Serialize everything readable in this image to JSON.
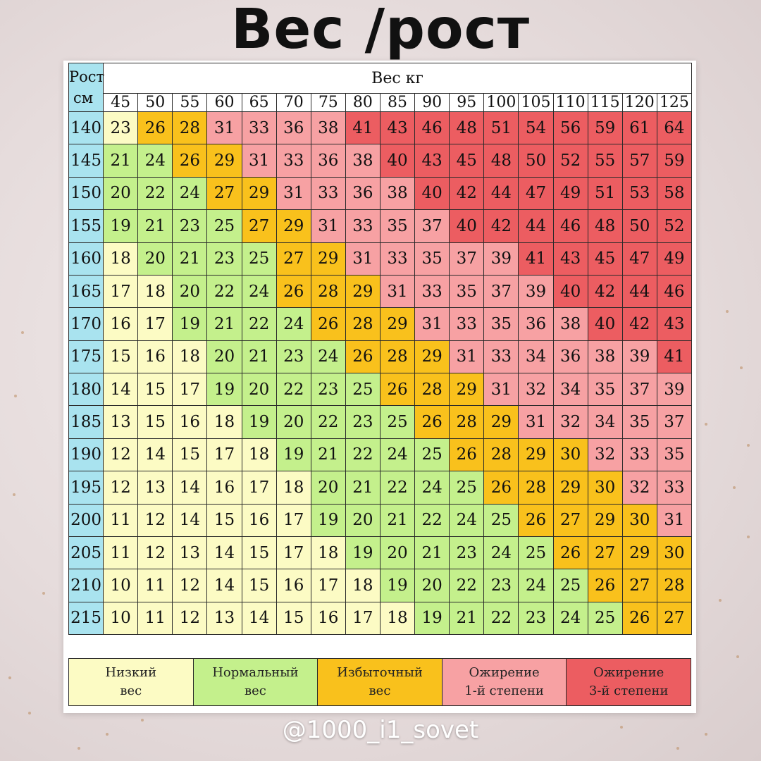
{
  "title": "Вес /рост",
  "watermark": "@1000_i1_sovet",
  "chart_data": {
    "type": "table",
    "corner_label_line1": "Рост",
    "corner_label_line2": "см",
    "weight_header": "Вес кг",
    "weights": [
      "45",
      "50",
      "55",
      "60",
      "65",
      "70",
      "75",
      "80",
      "85",
      "90",
      "95",
      "100",
      "105",
      "110",
      "115",
      "120",
      "125"
    ],
    "heights": [
      "140",
      "145",
      "150",
      "155",
      "160",
      "165",
      "170",
      "175",
      "180",
      "185",
      "190",
      "195",
      "200",
      "205",
      "210",
      "215"
    ],
    "values": [
      [
        23,
        26,
        28,
        31,
        33,
        36,
        38,
        41,
        43,
        46,
        48,
        51,
        54,
        56,
        59,
        61,
        64
      ],
      [
        21,
        24,
        26,
        29,
        31,
        33,
        36,
        38,
        40,
        43,
        45,
        48,
        50,
        52,
        55,
        57,
        59
      ],
      [
        20,
        22,
        24,
        27,
        29,
        31,
        33,
        36,
        38,
        40,
        42,
        44,
        47,
        49,
        51,
        53,
        58
      ],
      [
        19,
        21,
        23,
        25,
        27,
        29,
        31,
        33,
        35,
        37,
        40,
        42,
        44,
        46,
        48,
        50,
        52
      ],
      [
        18,
        20,
        21,
        23,
        25,
        27,
        29,
        31,
        33,
        35,
        37,
        39,
        41,
        43,
        45,
        47,
        49
      ],
      [
        17,
        18,
        20,
        22,
        24,
        26,
        28,
        29,
        31,
        33,
        35,
        37,
        39,
        40,
        42,
        44,
        46
      ],
      [
        16,
        17,
        19,
        21,
        22,
        24,
        26,
        28,
        29,
        31,
        33,
        35,
        36,
        38,
        40,
        42,
        43
      ],
      [
        15,
        16,
        18,
        20,
        21,
        23,
        24,
        26,
        28,
        29,
        31,
        33,
        34,
        36,
        38,
        39,
        41
      ],
      [
        14,
        15,
        17,
        19,
        20,
        22,
        23,
        25,
        26,
        28,
        29,
        31,
        32,
        34,
        35,
        37,
        39
      ],
      [
        13,
        15,
        16,
        18,
        19,
        20,
        22,
        23,
        25,
        26,
        28,
        29,
        31,
        32,
        34,
        35,
        37
      ],
      [
        12,
        14,
        15,
        17,
        18,
        19,
        21,
        22,
        24,
        25,
        26,
        28,
        29,
        30,
        32,
        33,
        35
      ],
      [
        12,
        13,
        14,
        16,
        17,
        18,
        20,
        21,
        22,
        24,
        25,
        26,
        28,
        29,
        30,
        32,
        33
      ],
      [
        11,
        12,
        14,
        15,
        16,
        17,
        19,
        20,
        21,
        22,
        24,
        25,
        26,
        27,
        29,
        30,
        31
      ],
      [
        11,
        12,
        13,
        14,
        15,
        17,
        18,
        19,
        20,
        21,
        23,
        24,
        25,
        26,
        27,
        29,
        30
      ],
      [
        10,
        11,
        12,
        14,
        15,
        16,
        17,
        18,
        19,
        20,
        22,
        23,
        24,
        25,
        26,
        27,
        28
      ],
      [
        10,
        11,
        12,
        13,
        14,
        15,
        16,
        17,
        18,
        19,
        21,
        22,
        23,
        24,
        25,
        26,
        27
      ]
    ],
    "categories": [
      [
        1,
        3,
        3,
        4,
        4,
        4,
        4,
        5,
        5,
        5,
        5,
        5,
        5,
        5,
        5,
        5,
        5
      ],
      [
        2,
        2,
        3,
        3,
        4,
        4,
        4,
        4,
        5,
        5,
        5,
        5,
        5,
        5,
        5,
        5,
        5
      ],
      [
        2,
        2,
        2,
        3,
        3,
        4,
        4,
        4,
        4,
        5,
        5,
        5,
        5,
        5,
        5,
        5,
        5
      ],
      [
        2,
        2,
        2,
        2,
        3,
        3,
        4,
        4,
        4,
        4,
        5,
        5,
        5,
        5,
        5,
        5,
        5
      ],
      [
        1,
        2,
        2,
        2,
        2,
        3,
        3,
        4,
        4,
        4,
        4,
        4,
        5,
        5,
        5,
        5,
        5
      ],
      [
        1,
        1,
        2,
        2,
        2,
        3,
        3,
        3,
        4,
        4,
        4,
        4,
        4,
        5,
        5,
        5,
        5
      ],
      [
        1,
        1,
        2,
        2,
        2,
        2,
        3,
        3,
        3,
        4,
        4,
        4,
        4,
        4,
        5,
        5,
        5
      ],
      [
        1,
        1,
        1,
        2,
        2,
        2,
        2,
        3,
        3,
        3,
        4,
        4,
        4,
        4,
        4,
        4,
        5
      ],
      [
        1,
        1,
        1,
        2,
        2,
        2,
        2,
        2,
        3,
        3,
        3,
        4,
        4,
        4,
        4,
        4,
        4
      ],
      [
        1,
        1,
        1,
        1,
        2,
        2,
        2,
        2,
        2,
        3,
        3,
        3,
        4,
        4,
        4,
        4,
        4
      ],
      [
        1,
        1,
        1,
        1,
        1,
        2,
        2,
        2,
        2,
        2,
        3,
        3,
        3,
        3,
        4,
        4,
        4
      ],
      [
        1,
        1,
        1,
        1,
        1,
        1,
        2,
        2,
        2,
        2,
        2,
        3,
        3,
        3,
        3,
        4,
        4
      ],
      [
        1,
        1,
        1,
        1,
        1,
        1,
        2,
        2,
        2,
        2,
        2,
        2,
        3,
        3,
        3,
        3,
        4
      ],
      [
        1,
        1,
        1,
        1,
        1,
        1,
        1,
        2,
        2,
        2,
        2,
        2,
        2,
        3,
        3,
        3,
        3
      ],
      [
        1,
        1,
        1,
        1,
        1,
        1,
        1,
        1,
        2,
        2,
        2,
        2,
        2,
        2,
        3,
        3,
        3
      ],
      [
        1,
        1,
        1,
        1,
        1,
        1,
        1,
        1,
        1,
        2,
        2,
        2,
        2,
        2,
        2,
        3,
        3
      ]
    ],
    "legend": [
      {
        "line1": "Низкий",
        "line2": "вес",
        "color": "#fcfbc4"
      },
      {
        "line1": "Нормальный",
        "line2": "вес",
        "color": "#c4f08c"
      },
      {
        "line1": "Избыточный",
        "line2": "вес",
        "color": "#f9c11c"
      },
      {
        "line1": "Ожирение",
        "line2": "1-й степени",
        "color": "#f7a1a3"
      },
      {
        "line1": "Ожирение",
        "line2": "3-й степени",
        "color": "#ec5d61"
      }
    ]
  }
}
